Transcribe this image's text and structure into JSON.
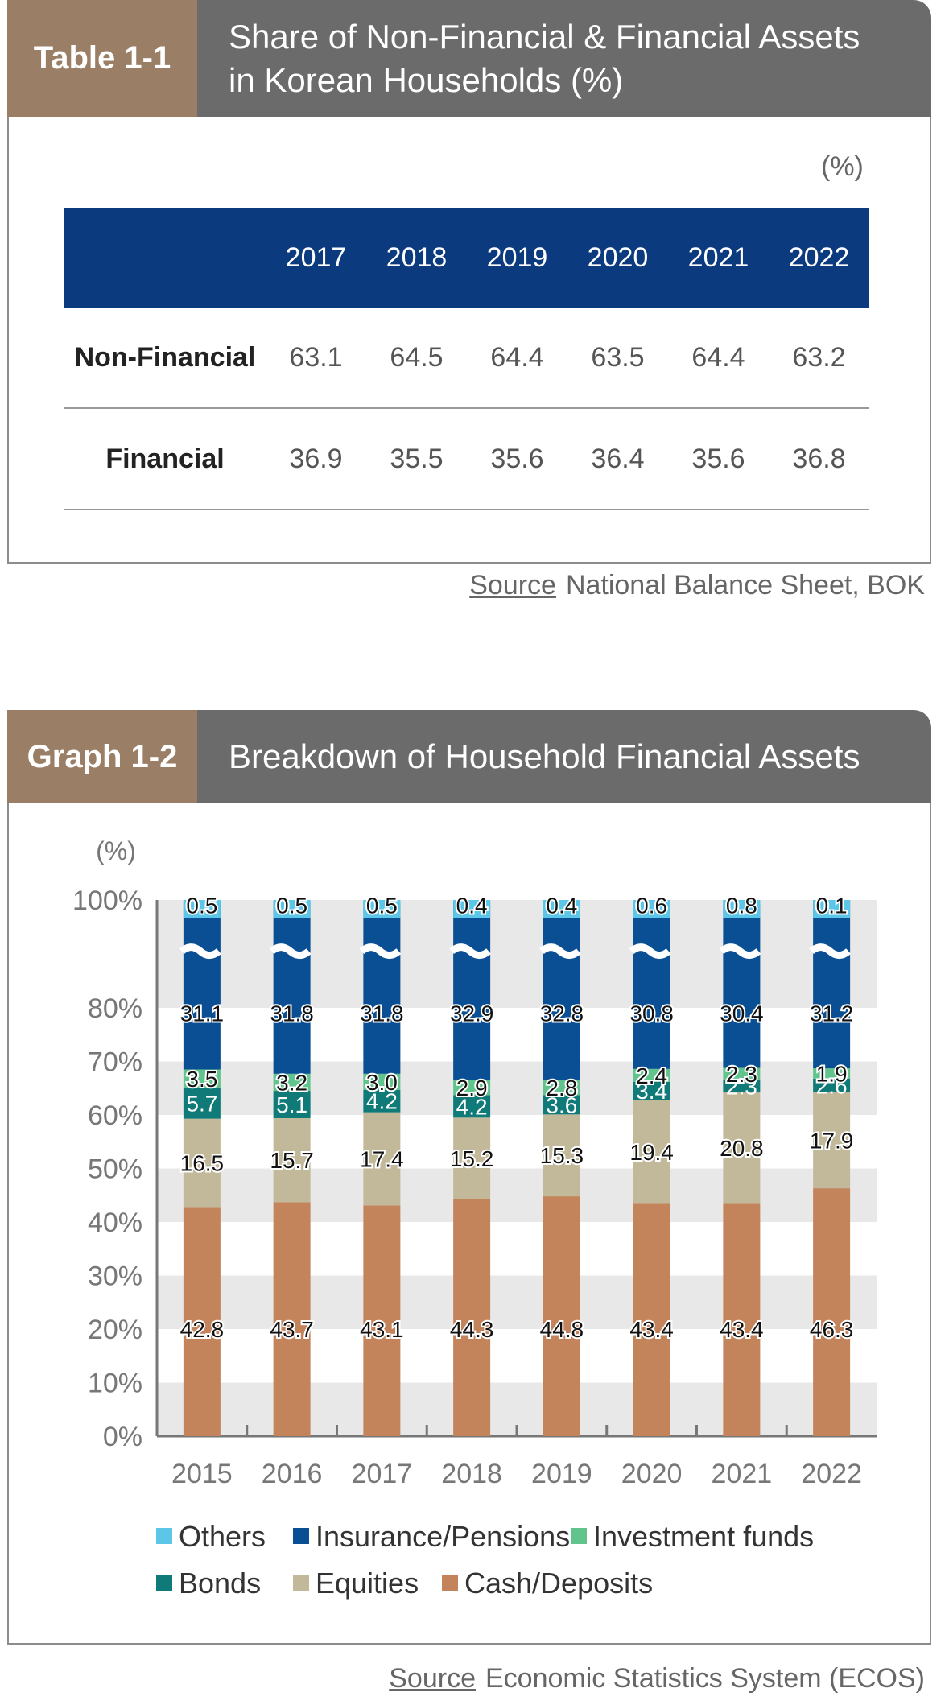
{
  "table": {
    "tag": "Table 1-1",
    "title_line1": "Share of Non-Financial & Financial Assets",
    "title_line2": "in Korean Households (%)",
    "unit": "(%)",
    "years": [
      "2017",
      "2018",
      "2019",
      "2020",
      "2021",
      "2022"
    ],
    "rows": [
      {
        "label": "Non-Financial",
        "values": [
          "63.1",
          "64.5",
          "64.4",
          "63.5",
          "64.4",
          "63.2"
        ]
      },
      {
        "label": "Financial",
        "values": [
          "36.9",
          "35.5",
          "35.6",
          "36.4",
          "35.6",
          "36.8"
        ]
      }
    ],
    "source_label": "Source",
    "source_text": "National Balance Sheet, BOK"
  },
  "graph": {
    "tag": "Graph 1-2",
    "title": "Breakdown of Household Financial Assets",
    "source_label": "Source",
    "source_text": "Economic Statistics System (ECOS)"
  },
  "colors": {
    "header_navy": "#0b3a7e",
    "tag_brown": "#9a7f66",
    "title_gray": "#6b6b6b",
    "others": "#5bc6e8",
    "insurance": "#0a4f94",
    "investment": "#62c48d",
    "bonds": "#0f7a78",
    "equities": "#c2b99a",
    "cash": "#c3845c"
  },
  "chart_data": {
    "type": "bar",
    "stacked": true,
    "ylabel": "(%)",
    "ylim": [
      0,
      100
    ],
    "y_ticks": [
      "0%",
      "10%",
      "20%",
      "30%",
      "40%",
      "50%",
      "60%",
      "70%",
      "80%",
      "100%"
    ],
    "axis_break": "between 80% and 100%",
    "categories": [
      "2015",
      "2016",
      "2017",
      "2018",
      "2019",
      "2020",
      "2021",
      "2022"
    ],
    "series": [
      {
        "name": "Cash/Deposits",
        "values": [
          42.8,
          43.7,
          43.1,
          44.3,
          44.8,
          43.4,
          43.4,
          46.3
        ],
        "labels": [
          "42.8",
          "43.7",
          "43.1",
          "44.3",
          "44.8",
          "43.4",
          "43.4",
          "46.3"
        ]
      },
      {
        "name": "Equities",
        "values": [
          16.5,
          15.7,
          17.4,
          15.2,
          15.3,
          19.4,
          20.8,
          17.9
        ],
        "labels": [
          "16.5",
          "15.7",
          "17.4",
          "15.2",
          "15.3",
          "19.4",
          "20.8",
          "17.9"
        ]
      },
      {
        "name": "Bonds",
        "values": [
          5.7,
          5.1,
          4.2,
          4.2,
          3.6,
          3.4,
          2.3,
          2.6
        ],
        "labels": [
          "5.7",
          "5.1",
          "4.2",
          "4.2",
          "3.6",
          "3.4",
          "2.3",
          "2.6"
        ]
      },
      {
        "name": "Investment funds",
        "values": [
          3.5,
          3.2,
          3.0,
          2.9,
          2.8,
          2.4,
          2.3,
          1.9
        ],
        "labels": [
          "3.5",
          "3.2",
          "3.0",
          "2.9",
          "2.8",
          "2.4",
          "2.3",
          "1.9"
        ]
      },
      {
        "name": "Insurance/Pensions",
        "values": [
          31.1,
          31.8,
          31.8,
          32.9,
          32.8,
          30.8,
          30.4,
          31.2
        ],
        "labels": [
          "31.1",
          "31.8",
          "31.8",
          "32.9",
          "32.8",
          "30.8",
          "30.4",
          "31.2"
        ]
      },
      {
        "name": "Others",
        "values": [
          0.5,
          0.5,
          0.5,
          0.4,
          0.4,
          0.6,
          0.8,
          0.1
        ],
        "labels": [
          "0.5",
          "0.5",
          "0.5",
          "0.4",
          "0.4",
          "0.6",
          "0.8",
          "0.1"
        ]
      }
    ],
    "legend": [
      "Others",
      "Insurance/Pensions",
      "Investment funds",
      "Bonds",
      "Equities",
      "Cash/Deposits"
    ]
  }
}
